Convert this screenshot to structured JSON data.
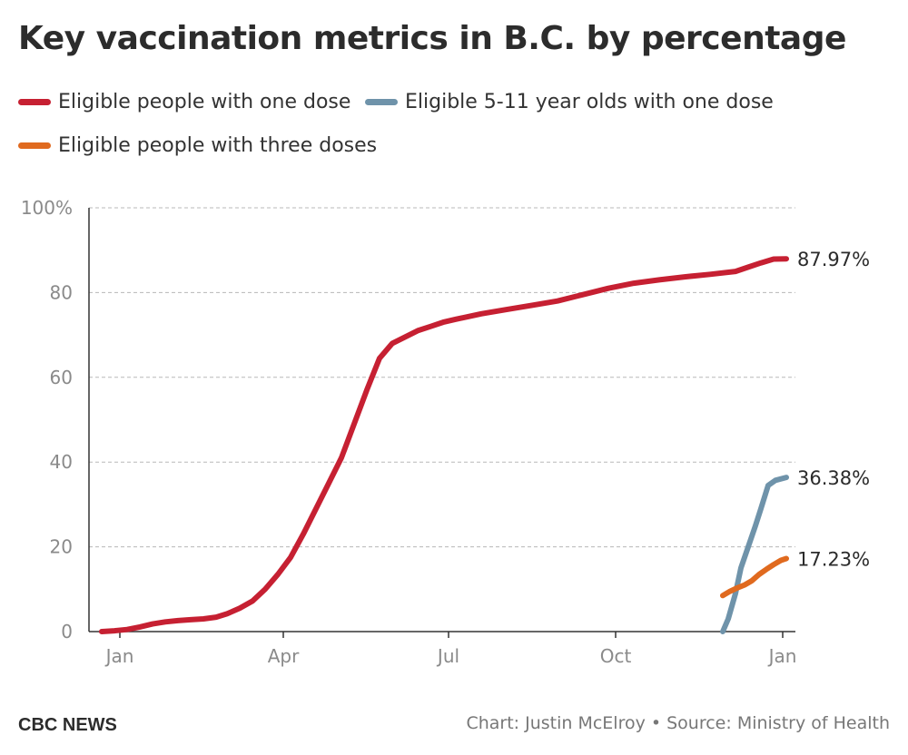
{
  "title": "Key vaccination metrics in B.C. by percentage",
  "footer": {
    "brand": "CBC NEWS",
    "credit": "Chart: Justin McElroy • Source: Ministry of Health"
  },
  "chart_data": {
    "type": "line",
    "title": "Key vaccination metrics in B.C. by percentage",
    "xlabel": "",
    "ylabel": "",
    "x_axis": {
      "type": "date",
      "range": [
        "2020-12-15",
        "2022-01-08"
      ],
      "ticks": [
        {
          "date": "2021-01-01",
          "label": "Jan"
        },
        {
          "date": "2021-04-01",
          "label": "Apr"
        },
        {
          "date": "2021-07-01",
          "label": "Jul"
        },
        {
          "date": "2021-10-01",
          "label": "Oct"
        },
        {
          "date": "2022-01-01",
          "label": "Jan"
        }
      ]
    },
    "y_axis": {
      "range": [
        0,
        100
      ],
      "ticks": [
        {
          "value": 0,
          "label": "0"
        },
        {
          "value": 20,
          "label": "20"
        },
        {
          "value": 40,
          "label": "40"
        },
        {
          "value": 60,
          "label": "60"
        },
        {
          "value": 80,
          "label": "80"
        },
        {
          "value": 100,
          "label": "100%"
        }
      ],
      "grid": true
    },
    "legend_position": "top",
    "series": [
      {
        "name": "Eligible people with one dose",
        "color": "#c62032",
        "end_label": "87.97%",
        "points": [
          [
            "2020-12-22",
            0
          ],
          [
            "2020-12-29",
            0.2
          ],
          [
            "2021-01-05",
            0.5
          ],
          [
            "2021-01-12",
            1.1
          ],
          [
            "2021-01-19",
            1.8
          ],
          [
            "2021-01-26",
            2.3
          ],
          [
            "2021-02-02",
            2.6
          ],
          [
            "2021-02-09",
            2.8
          ],
          [
            "2021-02-16",
            3.0
          ],
          [
            "2021-02-23",
            3.4
          ],
          [
            "2021-03-01",
            4.2
          ],
          [
            "2021-03-08",
            5.5
          ],
          [
            "2021-03-15",
            7.2
          ],
          [
            "2021-03-22",
            10
          ],
          [
            "2021-03-29",
            13.5
          ],
          [
            "2021-04-05",
            17.5
          ],
          [
            "2021-04-12",
            23
          ],
          [
            "2021-04-19",
            29
          ],
          [
            "2021-04-26",
            35
          ],
          [
            "2021-05-03",
            41
          ],
          [
            "2021-05-10",
            49
          ],
          [
            "2021-05-17",
            57
          ],
          [
            "2021-05-24",
            64.5
          ],
          [
            "2021-05-31",
            68
          ],
          [
            "2021-06-07",
            69.5
          ],
          [
            "2021-06-14",
            71
          ],
          [
            "2021-06-21",
            72
          ],
          [
            "2021-06-28",
            73
          ],
          [
            "2021-07-05",
            73.7
          ],
          [
            "2021-07-19",
            75
          ],
          [
            "2021-08-02",
            76
          ],
          [
            "2021-08-16",
            77
          ],
          [
            "2021-08-30",
            78
          ],
          [
            "2021-09-13",
            79.5
          ],
          [
            "2021-09-27",
            81
          ],
          [
            "2021-10-11",
            82.2
          ],
          [
            "2021-10-25",
            83
          ],
          [
            "2021-11-08",
            83.7
          ],
          [
            "2021-11-22",
            84.3
          ],
          [
            "2021-12-06",
            85
          ],
          [
            "2021-12-13",
            86
          ],
          [
            "2021-12-20",
            87
          ],
          [
            "2021-12-27",
            87.9
          ],
          [
            "2022-01-03",
            87.97
          ]
        ]
      },
      {
        "name": "Eligible 5-11 year olds with one dose",
        "color": "#6f93aa",
        "end_label": "36.38%",
        "points": [
          [
            "2021-11-29",
            0
          ],
          [
            "2021-12-02",
            3
          ],
          [
            "2021-12-06",
            9
          ],
          [
            "2021-12-09",
            15
          ],
          [
            "2021-12-13",
            20
          ],
          [
            "2021-12-17",
            25
          ],
          [
            "2021-12-20",
            29
          ],
          [
            "2021-12-24",
            34.5
          ],
          [
            "2021-12-28",
            35.7
          ],
          [
            "2022-01-03",
            36.38
          ]
        ]
      },
      {
        "name": "Eligible people with three doses",
        "color": "#e06a1f",
        "end_label": "17.23%",
        "points": [
          [
            "2021-11-29",
            8.5
          ],
          [
            "2021-12-03",
            9.5
          ],
          [
            "2021-12-07",
            10.3
          ],
          [
            "2021-12-11",
            11
          ],
          [
            "2021-12-15",
            12
          ],
          [
            "2021-12-19",
            13.5
          ],
          [
            "2021-12-23",
            14.7
          ],
          [
            "2021-12-27",
            15.8
          ],
          [
            "2021-12-31",
            16.8
          ],
          [
            "2022-01-03",
            17.23
          ]
        ]
      }
    ]
  }
}
